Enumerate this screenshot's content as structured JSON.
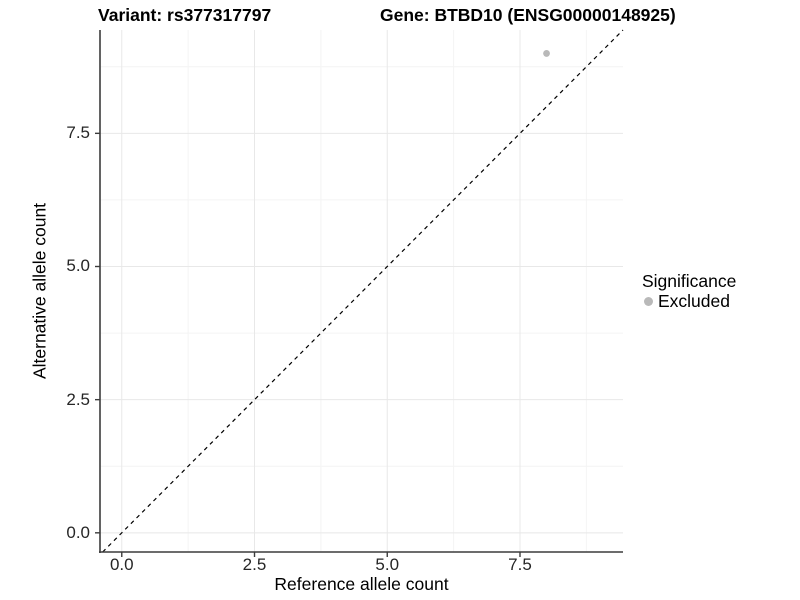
{
  "chart_data": {
    "type": "scatter",
    "titles": {
      "left": "Variant: rs377317797",
      "right": "Gene: BTBD10 (ENSG00000148925)"
    },
    "xlabel": "Reference allele count",
    "ylabel": "Alternative allele count",
    "xlim": [
      -0.41,
      9.44
    ],
    "ylim": [
      -0.36,
      9.44
    ],
    "x_ticks": [
      0,
      2.5,
      5,
      7.5
    ],
    "x_tick_labels": [
      "0.0",
      "2.5",
      "5.0",
      "7.5"
    ],
    "x_minor_ticks": [
      1.25,
      3.75,
      6.25,
      8.75
    ],
    "y_ticks": [
      0,
      2.5,
      5,
      7.5
    ],
    "y_tick_labels": [
      "0.0",
      "2.5",
      "5.0",
      "7.5"
    ],
    "y_minor_ticks": [
      1.25,
      3.75,
      6.25,
      8.75
    ],
    "grid": true,
    "points": [
      {
        "x": 8,
        "y": 9,
        "significance": "Excluded"
      }
    ],
    "reference_line": {
      "kind": "identity",
      "style": "dashed"
    },
    "legend": {
      "position": "right",
      "title": "Significance",
      "entries": [
        {
          "label": "Excluded",
          "color": "#b9b9b9"
        }
      ]
    },
    "colors": {
      "background": "#ffffff",
      "point": "#b9b9b9",
      "grid_major": "#e8e8e8",
      "grid_minor": "#f4f4f4",
      "axis": "#3c3c3c",
      "reference_line": "#000000",
      "title_text": "#000000",
      "tick_text": "#262626"
    }
  }
}
